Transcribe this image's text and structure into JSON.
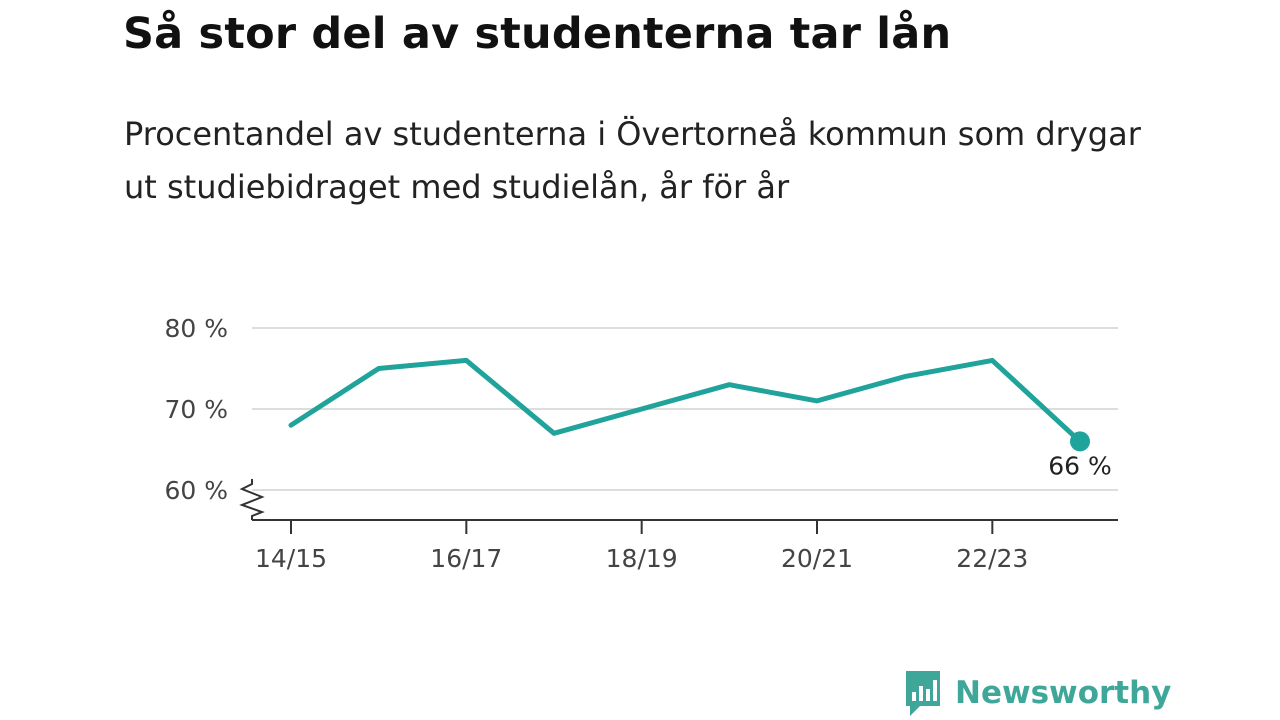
{
  "title": "Så stor del av studenterna tar lån",
  "subtitle": "Procentandel av studenterna i Övertorneå kommun som drygar ut studiebidraget med studielån, år för år",
  "brand": {
    "name": "Newsworthy",
    "color": "#3fa79a",
    "icon": "bar-chart-icon"
  },
  "colors": {
    "line": "#20a39a",
    "grid": "#dddddd",
    "axis": "#333333"
  },
  "chart_data": {
    "type": "line",
    "x": [
      "14/15",
      "15/16",
      "16/17",
      "17/18",
      "18/19",
      "19/20",
      "20/21",
      "21/22",
      "22/23",
      "23/24"
    ],
    "values": [
      68,
      75,
      76,
      67,
      70,
      73,
      71,
      74,
      76,
      66
    ],
    "y_ticks": [
      {
        "value": 60,
        "label": "60 %"
      },
      {
        "value": 70,
        "label": "70 %"
      },
      {
        "value": 80,
        "label": "80 %"
      }
    ],
    "x_tick_labels": [
      "14/15",
      "16/17",
      "18/19",
      "20/21",
      "22/23"
    ],
    "ylim": [
      56,
      80
    ],
    "y_axis_break": true,
    "grid": true,
    "last_point_label": "66 %",
    "title": "",
    "xlabel": "",
    "ylabel": ""
  }
}
